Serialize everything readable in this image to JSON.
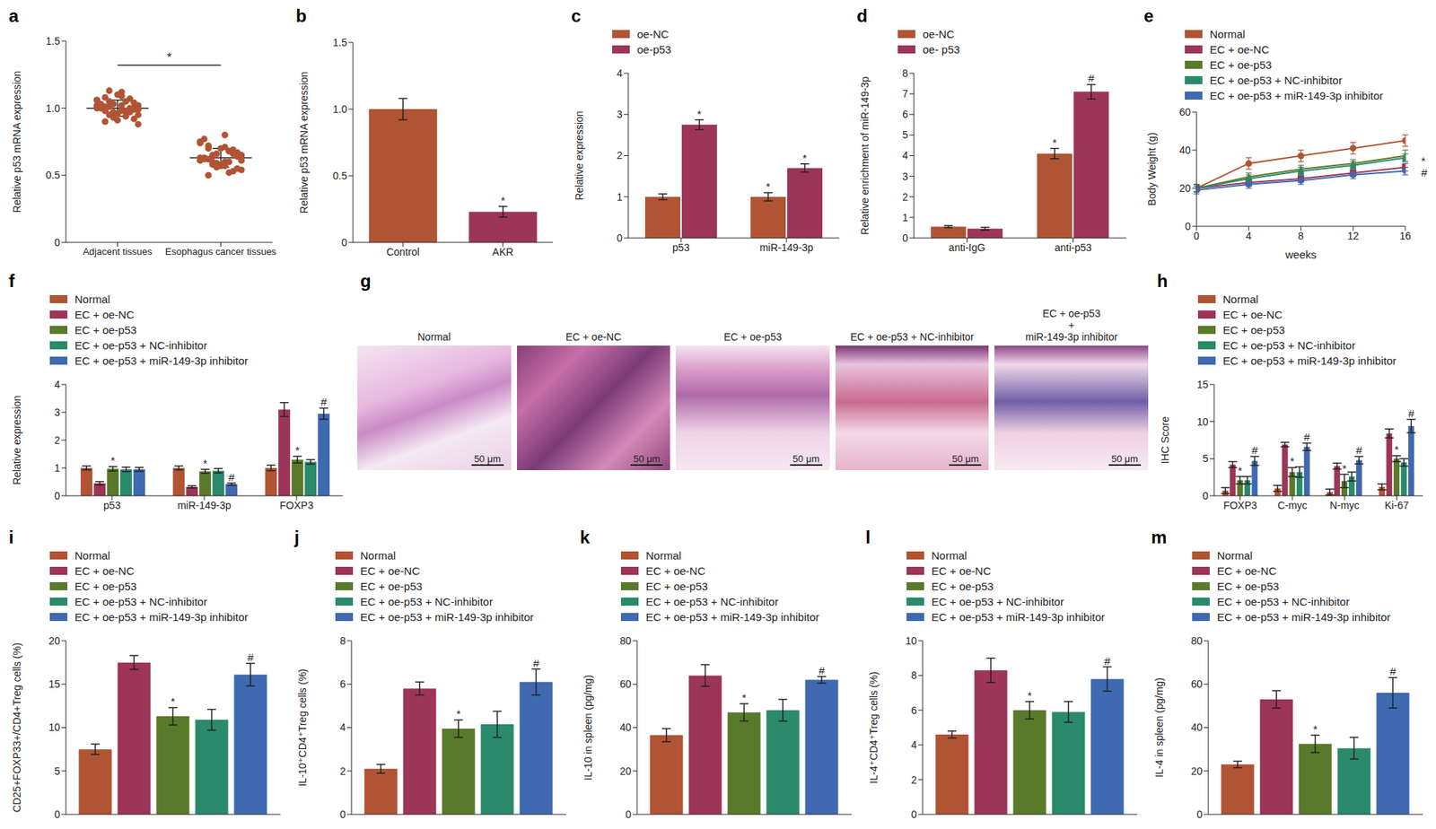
{
  "chart_data": [
    {
      "panel": "a",
      "type": "scatter",
      "categories": [
        "Adjacent tissues",
        "Esophagus cancer tissues"
      ],
      "values": [
        [
          1.0,
          1.05,
          0.95,
          1.02,
          0.98,
          1.08,
          0.92,
          1.1,
          1.0,
          0.97,
          1.03,
          1.06,
          0.94,
          1.01,
          0.99,
          1.12,
          0.9,
          1.04,
          0.96,
          1.0,
          1.07,
          0.93,
          1.02,
          0.98,
          1.05,
          0.95,
          1.09,
          1.01,
          0.99,
          0.91,
          1.03,
          1.0,
          0.97,
          1.06,
          0.94,
          1.13,
          0.88,
          1.02,
          0.98,
          1.0
        ],
        [
          0.63,
          0.68,
          0.58,
          0.65,
          0.6,
          0.72,
          0.55,
          0.7,
          0.62,
          0.66,
          0.59,
          0.75,
          0.52,
          0.64,
          0.61,
          0.8,
          0.5,
          0.67,
          0.57,
          0.63,
          0.69,
          0.56,
          0.74,
          0.6,
          0.65,
          0.54,
          0.71,
          0.62,
          0.64,
          0.58,
          0.77,
          0.53,
          0.66,
          0.61,
          0.68,
          0.6,
          0.63,
          0.57,
          0.7,
          0.65
        ]
      ],
      "means": [
        1.0,
        0.63
      ],
      "sd": [
        0.06,
        0.07
      ],
      "color": "#b05434",
      "comparison": "*",
      "ylabel": "Relative p53 mRNA expression",
      "ylim": [
        0,
        1.5
      ],
      "yticks": [
        0,
        0.5,
        {
          "value": 1,
          "label": "1.0"
        },
        1.5
      ]
    },
    {
      "panel": "b",
      "type": "bar",
      "categories": [
        "Control",
        "AKR"
      ],
      "values": [
        1.0,
        0.23
      ],
      "errors": [
        0.08,
        0.04
      ],
      "annotations": [
        null,
        "*"
      ],
      "colors": [
        "#b05434",
        "#9c3558"
      ],
      "ylabel": "Relative p53 mRNA expression",
      "ylim": [
        0,
        1.5
      ],
      "yticks": [
        0,
        0.5,
        {
          "value": 1,
          "label": "1.0"
        },
        1.5
      ]
    },
    {
      "panel": "c",
      "type": "bar",
      "categories": [
        "p53",
        "miR-149-3p"
      ],
      "series": [
        {
          "name": "oe-NC",
          "color": "#b05434",
          "values": [
            1.0,
            1.0
          ],
          "errors": [
            0.07,
            0.1
          ],
          "annotations": [
            null,
            "*"
          ]
        },
        {
          "name": "oe-p53",
          "color": "#9c3558",
          "values": [
            2.75,
            1.7
          ],
          "errors": [
            0.12,
            0.1
          ],
          "annotations": [
            "*",
            "*"
          ]
        }
      ],
      "ylabel": "Relative expression",
      "ylim": [
        0,
        4
      ],
      "yticks": [
        0,
        1,
        2,
        3,
        4
      ]
    },
    {
      "panel": "d",
      "type": "bar",
      "categories": [
        "anti-IgG",
        "anti-p53"
      ],
      "series": [
        {
          "name": "oe-NC",
          "color": "#b05434",
          "values": [
            0.55,
            4.1
          ],
          "errors": [
            0.05,
            0.25
          ],
          "annotations": [
            null,
            "*"
          ]
        },
        {
          "name": "oe- p53",
          "color": "#9c3558",
          "values": [
            0.45,
            7.1
          ],
          "errors": [
            0.07,
            0.35
          ],
          "annotations": [
            null,
            "#"
          ]
        }
      ],
      "ylabel": "Relative enrichment of miR-149-3p",
      "ylim": [
        0,
        8
      ],
      "yticks": [
        0,
        1,
        2,
        3,
        4,
        5,
        6,
        7,
        8
      ]
    },
    {
      "panel": "e",
      "type": "line",
      "x": [
        0,
        4,
        8,
        12,
        16
      ],
      "xlim": [
        0,
        16
      ],
      "xticks": [
        0,
        4,
        8,
        12,
        16
      ],
      "xlabel": "weeks",
      "ylabel": "Body Weight (g)",
      "ylim": [
        0,
        60
      ],
      "yticks": [
        0,
        20,
        40,
        60
      ],
      "annotations": [
        "*",
        "#"
      ],
      "series": [
        {
          "name": "Normal",
          "color": "#b05434",
          "marker": "circle",
          "values": [
            20,
            33,
            37,
            41,
            45
          ],
          "errors": [
            2,
            3,
            3,
            3,
            3
          ]
        },
        {
          "name": "EC + oe-NC",
          "color": "#9c3558",
          "marker": "square",
          "values": [
            20,
            23,
            25,
            28,
            31
          ],
          "errors": [
            2,
            2,
            2,
            2,
            2
          ]
        },
        {
          "name": "EC + oe-p53",
          "color": "#5a7a2b",
          "marker": "triangle",
          "values": [
            20,
            26,
            30,
            33,
            37
          ],
          "errors": [
            2,
            2,
            2,
            2,
            3
          ]
        },
        {
          "name": "EC + oe-p53 + NC-inhibitor",
          "color": "#2a8a6b",
          "marker": "triangle",
          "values": [
            20,
            25,
            29,
            32,
            36
          ],
          "errors": [
            2,
            2,
            2,
            2,
            2
          ]
        },
        {
          "name": "EC + oe-p53 + miR-149-3p inhibitor",
          "color": "#3f69b0",
          "marker": "diamond",
          "values": [
            19,
            22,
            24,
            27,
            29
          ],
          "errors": [
            2,
            2,
            2,
            2,
            2
          ]
        }
      ]
    },
    {
      "panel": "f",
      "type": "bar",
      "categories": [
        "p53",
        "miR-149-3p",
        "FOXP3"
      ],
      "ylabel": "Relative expression",
      "ylim": [
        0,
        4
      ],
      "yticks": [
        0,
        1,
        2,
        3,
        4
      ],
      "series": [
        {
          "name": "Normal",
          "color": "#b05434",
          "values": [
            1.0,
            1.0,
            1.0
          ],
          "errors": [
            0.07,
            0.07,
            0.1
          ]
        },
        {
          "name": "EC + oe-NC",
          "color": "#9c3558",
          "values": [
            0.45,
            0.32,
            3.1
          ],
          "errors": [
            0.06,
            0.04,
            0.25
          ]
        },
        {
          "name": "EC + oe-p53",
          "color": "#5a7a2b",
          "values": [
            0.97,
            0.88,
            1.3
          ],
          "errors": [
            0.08,
            0.07,
            0.12
          ],
          "annotations": [
            "*",
            "*",
            "*"
          ]
        },
        {
          "name": "EC + oe-p53 + NC-inhibitor",
          "color": "#2a8a6b",
          "values": [
            0.95,
            0.9,
            1.22
          ],
          "errors": [
            0.08,
            0.08,
            0.08
          ]
        },
        {
          "name": "EC + oe-p53 + miR-149-3p inhibitor",
          "color": "#3f69b0",
          "values": [
            0.95,
            0.42,
            2.95
          ],
          "errors": [
            0.07,
            0.04,
            0.2
          ],
          "annotations": [
            null,
            "#",
            "#"
          ]
        }
      ]
    },
    {
      "panel": "g",
      "type": "image",
      "scale_bar": "50 μm",
      "images": [
        {
          "title": [
            "Normal"
          ]
        },
        {
          "title": [
            "EC + oe-NC"
          ]
        },
        {
          "title": [
            "EC + oe-p53"
          ]
        },
        {
          "title": [
            "EC + oe-p53 + NC-inhibitor"
          ]
        },
        {
          "title": [
            "EC + oe-p53",
            "+",
            "miR-149-3p inhibitor"
          ]
        }
      ]
    },
    {
      "panel": "h",
      "type": "bar",
      "categories": [
        "FOXP3",
        "C-myc",
        "N-myc",
        "Ki-67"
      ],
      "ylabel": "IHC Score",
      "ylim": [
        0,
        15
      ],
      "yticks": [
        0,
        5,
        10,
        15
      ],
      "series": [
        {
          "name": "Normal",
          "color": "#b05434",
          "values": [
            0.7,
            1.0,
            0.5,
            1.2
          ],
          "errors": [
            0.4,
            0.4,
            0.4,
            0.4
          ]
        },
        {
          "name": "EC + oe-NC",
          "color": "#9c3558",
          "values": [
            4.2,
            6.9,
            4.0,
            8.4
          ],
          "errors": [
            0.4,
            0.3,
            0.4,
            0.6
          ]
        },
        {
          "name": "EC + oe-p53",
          "color": "#5a7a2b",
          "values": [
            2.1,
            3.2,
            2.0,
            5.0
          ],
          "errors": [
            0.5,
            0.6,
            0.9,
            0.4
          ],
          "annotations": [
            "*",
            "*",
            "*",
            "*"
          ]
        },
        {
          "name": "EC + oe-p53 + NC-inhibitor",
          "color": "#2a8a6b",
          "values": [
            2.1,
            3.2,
            2.6,
            4.5
          ],
          "errors": [
            0.5,
            0.7,
            0.6,
            0.5
          ]
        },
        {
          "name": "EC + oe-p53 + miR-149-3p inhibitor",
          "color": "#3f69b0",
          "values": [
            4.7,
            6.6,
            4.8,
            9.4
          ],
          "errors": [
            0.6,
            0.5,
            0.5,
            0.9
          ],
          "annotations": [
            "#",
            "#",
            "#",
            "#"
          ]
        }
      ]
    },
    {
      "panel": "i",
      "type": "bar",
      "categories": [
        null
      ],
      "tick_labels": "y",
      "ylabel": "CD25+FOXP33+/CD4+Treg cells (%)",
      "ylim": [
        0,
        20
      ],
      "yticks": [
        0,
        5,
        10,
        15,
        20
      ],
      "series": [
        {
          "name": "Normal",
          "color": "#b05434",
          "values": [
            7.5
          ],
          "errors": [
            0.6
          ]
        },
        {
          "name": "EC + oe-NC",
          "color": "#9c3558",
          "values": [
            17.5
          ],
          "errors": [
            0.8
          ]
        },
        {
          "name": "EC + oe-p53",
          "color": "#5a7a2b",
          "values": [
            11.3
          ],
          "errors": [
            1.0
          ],
          "annotations": [
            "*"
          ]
        },
        {
          "name": "EC + oe-p53 + NC-inhibitor",
          "color": "#2a8a6b",
          "values": [
            10.9
          ],
          "errors": [
            1.2
          ]
        },
        {
          "name": "EC + oe-p53 + miR-149-3p inhibitor",
          "color": "#3f69b0",
          "values": [
            16.1
          ],
          "errors": [
            1.3
          ],
          "annotations": [
            "#"
          ]
        }
      ]
    },
    {
      "panel": "j",
      "type": "bar",
      "categories": [
        null
      ],
      "tick_labels": "y",
      "ylabel": "IL-10⁺CD4⁺Treg cells (%)",
      "ylim": [
        0,
        8
      ],
      "yticks": [
        0,
        2,
        4,
        6,
        8
      ],
      "series": [
        {
          "name": "Normal",
          "color": "#b05434",
          "values": [
            2.1
          ],
          "errors": [
            0.2
          ]
        },
        {
          "name": "EC + oe-NC",
          "color": "#9c3558",
          "values": [
            5.8
          ],
          "errors": [
            0.3
          ]
        },
        {
          "name": "EC + oe-p53",
          "color": "#5a7a2b",
          "values": [
            3.95
          ],
          "errors": [
            0.4
          ],
          "annotations": [
            "*"
          ]
        },
        {
          "name": "EC + oe-p53 + NC-inhibitor",
          "color": "#2a8a6b",
          "values": [
            4.15
          ],
          "errors": [
            0.6
          ]
        },
        {
          "name": "EC + oe-p53 + miR-149-3p inhibitor",
          "color": "#3f69b0",
          "values": [
            6.1
          ],
          "errors": [
            0.6
          ],
          "annotations": [
            "#"
          ]
        }
      ]
    },
    {
      "panel": "k",
      "type": "bar",
      "categories": [
        null
      ],
      "tick_labels": "y",
      "ylabel": "IL-10 in spleen (pg/mg)",
      "ylim": [
        0,
        80
      ],
      "yticks": [
        0,
        20,
        40,
        60,
        80
      ],
      "series": [
        {
          "name": "Normal",
          "color": "#b05434",
          "values": [
            36.5
          ],
          "errors": [
            3
          ]
        },
        {
          "name": "EC + oe-NC",
          "color": "#9c3558",
          "values": [
            64
          ],
          "errors": [
            5
          ]
        },
        {
          "name": "EC + oe-p53",
          "color": "#5a7a2b",
          "values": [
            47
          ],
          "errors": [
            4
          ],
          "annotations": [
            "*"
          ]
        },
        {
          "name": "EC + oe-p53 + NC-inhibitor",
          "color": "#2a8a6b",
          "values": [
            48
          ],
          "errors": [
            5
          ]
        },
        {
          "name": "EC + oe-p53 + miR-149-3p inhibitor",
          "color": "#3f69b0",
          "values": [
            62
          ],
          "errors": [
            1.5
          ],
          "annotations": [
            "#"
          ]
        }
      ]
    },
    {
      "panel": "l",
      "type": "bar",
      "categories": [
        null
      ],
      "tick_labels": "y",
      "ylabel": "IL-4⁺CD4⁺Treg cells (%)",
      "ylim": [
        0,
        10
      ],
      "yticks": [
        0,
        2,
        4,
        6,
        8,
        10
      ],
      "series": [
        {
          "name": "Normal",
          "color": "#b05434",
          "values": [
            4.6
          ],
          "errors": [
            0.2
          ]
        },
        {
          "name": "EC + oe-NC",
          "color": "#9c3558",
          "values": [
            8.3
          ],
          "errors": [
            0.7
          ]
        },
        {
          "name": "EC + oe-p53",
          "color": "#5a7a2b",
          "values": [
            6.0
          ],
          "errors": [
            0.5
          ],
          "annotations": [
            "*"
          ]
        },
        {
          "name": "EC + oe-p53 + NC-inhibitor",
          "color": "#2a8a6b",
          "values": [
            5.9
          ],
          "errors": [
            0.6
          ]
        },
        {
          "name": "EC + oe-p53 + miR-149-3p inhibitor",
          "color": "#3f69b0",
          "values": [
            7.8
          ],
          "errors": [
            0.7
          ],
          "annotations": [
            "#"
          ]
        }
      ]
    },
    {
      "panel": "m",
      "type": "bar",
      "categories": [
        null
      ],
      "tick_labels": "y",
      "ylabel": "IL-4 in spleen (pg/mg)",
      "ylim": [
        0,
        80
      ],
      "yticks": [
        0,
        20,
        40,
        60,
        80
      ],
      "series": [
        {
          "name": "Normal",
          "color": "#b05434",
          "values": [
            23
          ],
          "errors": [
            1.5
          ]
        },
        {
          "name": "EC + oe-NC",
          "color": "#9c3558",
          "values": [
            53
          ],
          "errors": [
            4
          ]
        },
        {
          "name": "EC + oe-p53",
          "color": "#5a7a2b",
          "values": [
            32.5
          ],
          "errors": [
            4
          ],
          "annotations": [
            "*"
          ]
        },
        {
          "name": "EC + oe-p53 + NC-inhibitor",
          "color": "#2a8a6b",
          "values": [
            30.5
          ],
          "errors": [
            5
          ]
        },
        {
          "name": "EC + oe-p53 + miR-149-3p inhibitor",
          "color": "#3f69b0",
          "values": [
            56
          ],
          "errors": [
            7
          ],
          "annotations": [
            "#"
          ]
        }
      ]
    }
  ]
}
